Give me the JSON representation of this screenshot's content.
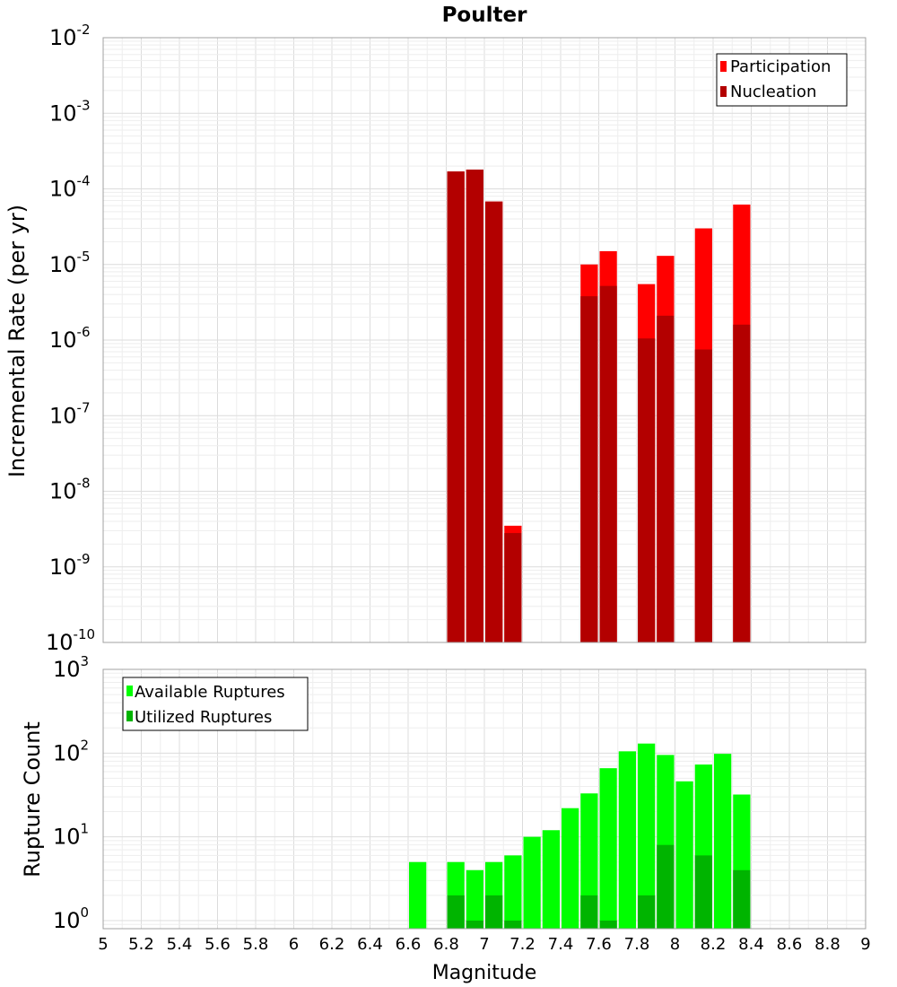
{
  "chart_data": [
    {
      "type": "bar",
      "title": "Poulter",
      "ylabel": "Incremental Rate (per yr)",
      "xlabel": "",
      "yscale": "log",
      "ylim": [
        1e-10,
        0.01
      ],
      "xlim": [
        5,
        9
      ],
      "grid": true,
      "legend_position": "top-right",
      "ytick_bases": [
        "10",
        "10",
        "10",
        "10",
        "10",
        "10",
        "10",
        "10",
        "10"
      ],
      "ytick_exponents": [
        "-10",
        "-9",
        "-8",
        "-7",
        "-6",
        "-5",
        "-4",
        "-3",
        "-2"
      ],
      "bin_width": 0.1,
      "series": [
        {
          "name": "Participation",
          "color": "#ff0000",
          "x": [
            6.85,
            6.95,
            7.05,
            7.15,
            7.55,
            7.65,
            7.85,
            7.95,
            8.15,
            8.35
          ],
          "values": [
            0.00017,
            0.00018,
            6.8e-05,
            3.5e-09,
            1e-05,
            1.5e-05,
            5.5e-06,
            1.3e-05,
            3e-05,
            6.2e-05
          ]
        },
        {
          "name": "Nucleation",
          "color": "#b30000",
          "x": [
            6.85,
            6.95,
            7.05,
            7.15,
            7.55,
            7.65,
            7.85,
            7.95,
            8.15,
            8.35
          ],
          "values": [
            0.00017,
            0.00018,
            6.8e-05,
            2.8e-09,
            3.8e-06,
            5.2e-06,
            1.05e-06,
            2.1e-06,
            7.5e-07,
            1.6e-06
          ]
        }
      ]
    },
    {
      "type": "bar",
      "title": "",
      "ylabel": "Rupture Count",
      "xlabel": "Magnitude",
      "yscale": "log",
      "ylim": [
        0.8,
        1000
      ],
      "xlim": [
        5,
        9
      ],
      "grid": true,
      "legend_position": "top-left",
      "ytick_bases": [
        "10",
        "10",
        "10",
        "10"
      ],
      "ytick_exponents": [
        "0",
        "1",
        "2",
        "3"
      ],
      "xticks": [
        "5",
        "5.2",
        "5.4",
        "5.6",
        "5.8",
        "6",
        "6.2",
        "6.4",
        "6.6",
        "6.8",
        "7",
        "7.2",
        "7.4",
        "7.6",
        "7.8",
        "8",
        "8.2",
        "8.4",
        "8.6",
        "8.8",
        "9"
      ],
      "bin_width": 0.1,
      "series": [
        {
          "name": "Available Ruptures",
          "color": "#00ff00",
          "x": [
            6.65,
            6.85,
            6.95,
            7.05,
            7.15,
            7.25,
            7.35,
            7.45,
            7.55,
            7.65,
            7.75,
            7.85,
            7.95,
            8.05,
            8.15,
            8.25,
            8.35
          ],
          "values": [
            5,
            5,
            4,
            5,
            6,
            10,
            12,
            22,
            33,
            66,
            105,
            130,
            95,
            46,
            73,
            98,
            32
          ]
        },
        {
          "name": "Utilized Ruptures",
          "color": "#00b400",
          "x": [
            6.85,
            6.95,
            7.05,
            7.15,
            7.55,
            7.65,
            7.85,
            7.95,
            8.15,
            8.35
          ],
          "values": [
            2,
            1,
            2,
            1,
            2,
            1,
            2,
            8,
            6,
            4
          ]
        }
      ]
    }
  ]
}
